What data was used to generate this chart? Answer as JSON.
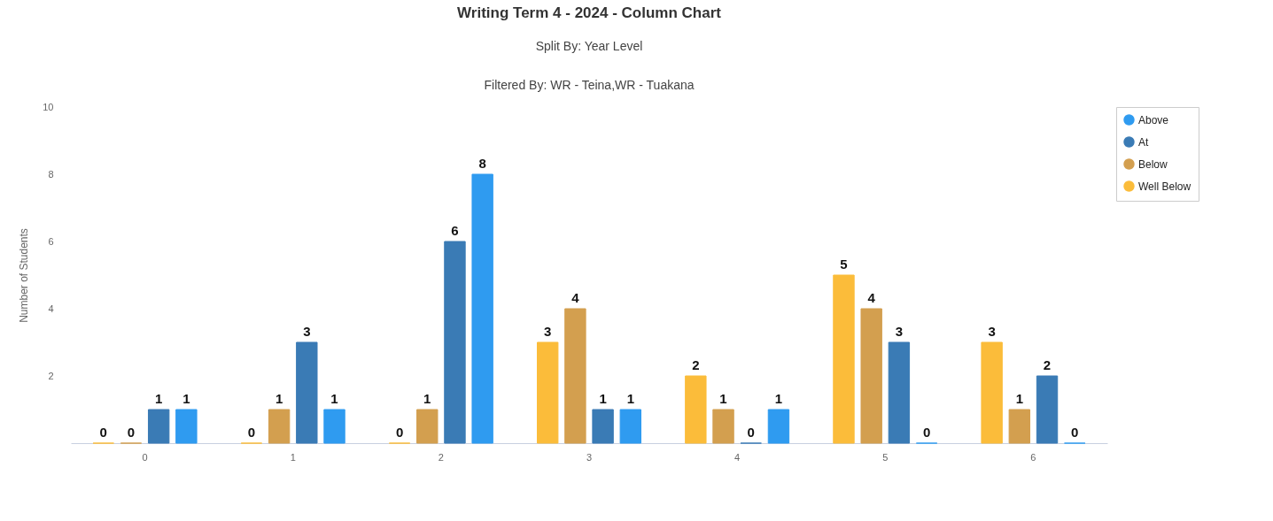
{
  "chart_data": {
    "type": "bar",
    "title": "Writing Term 4 - 2024 - Column Chart",
    "subtitle": "Split By: Year Level",
    "annotations": [
      "Filtered By: WR - Teina,WR - Tuakana"
    ],
    "ylabel": "Number of Students",
    "categories": [
      "0",
      "1",
      "2",
      "3",
      "4",
      "5",
      "6"
    ],
    "series": [
      {
        "name": "Well Below",
        "color": "#fbbc3a",
        "values": [
          0,
          0,
          0,
          3,
          2,
          5,
          3
        ]
      },
      {
        "name": "Below",
        "color": "#d39f4f",
        "values": [
          0,
          1,
          1,
          4,
          1,
          4,
          1
        ]
      },
      {
        "name": "At",
        "color": "#3a7bb5",
        "values": [
          1,
          3,
          6,
          1,
          0,
          3,
          2
        ]
      },
      {
        "name": "Above",
        "color": "#2f9bf0",
        "values": [
          1,
          1,
          8,
          1,
          1,
          0,
          0
        ]
      }
    ],
    "ylim": [
      0,
      10
    ],
    "yticks": [
      2,
      4,
      6,
      8,
      10
    ],
    "grid": false,
    "legend": "right",
    "data_labels": true
  }
}
